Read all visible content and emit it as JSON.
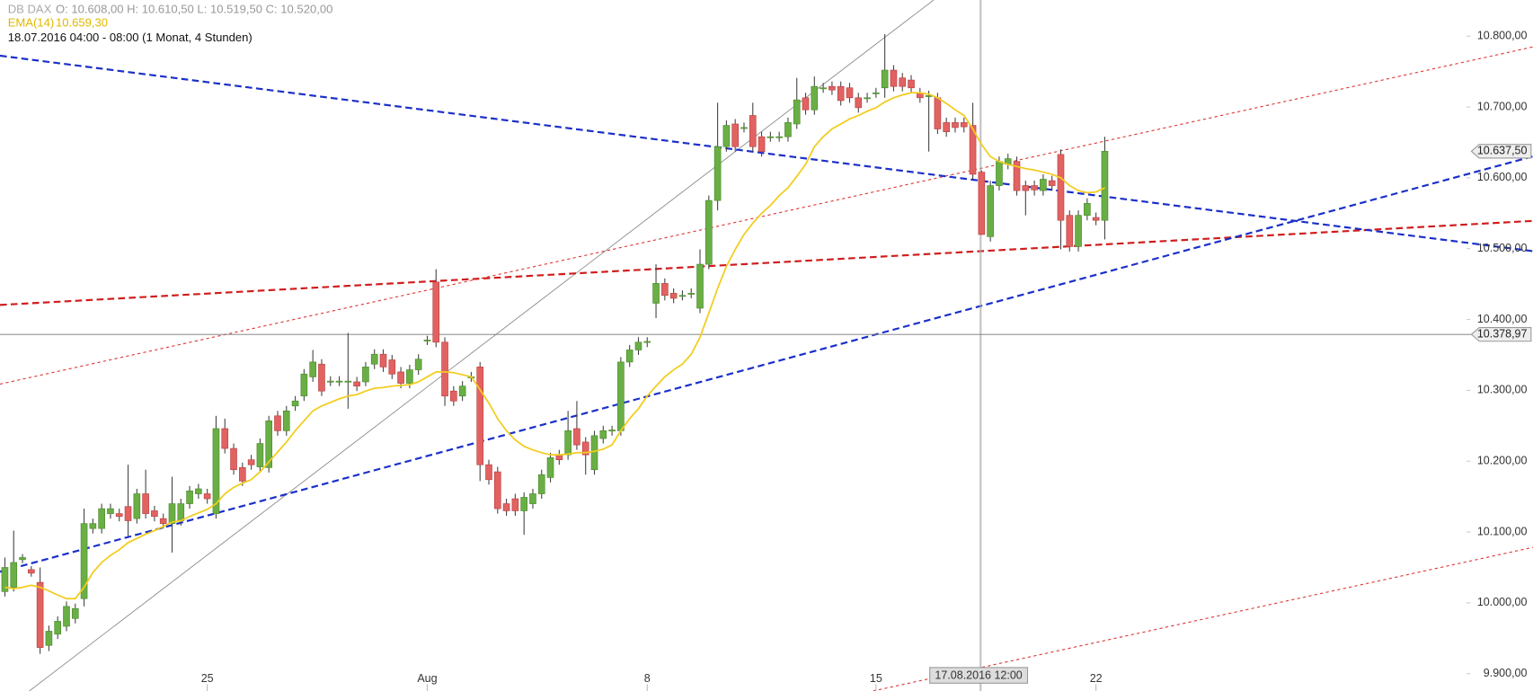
{
  "chart_data": {
    "type": "candlestick",
    "symbol": "DB DAX",
    "ohlc_text": "O: 10.608,00  H: 10.610,50  L: 10.519,50  C: 10.520,00",
    "indicator_name": "EMA(14)",
    "indicator_value": "10.659,30",
    "period_text": "18.07.2016 04:00 - 08:00 (1 Monat, 4 Stunden)",
    "crosshair_label": "17.08.2016 12:00",
    "up_color": "#6aaf45",
    "down_color": "#e26262",
    "ema_color": "#f2cc1c",
    "ylim": [
      9877,
      10851
    ],
    "yticks": [
      {
        "value": 9900,
        "label": "9.900,00"
      },
      {
        "value": 10000,
        "label": "10.000,00"
      },
      {
        "value": 10100,
        "label": "10.100,00"
      },
      {
        "value": 10200,
        "label": "10.200,00"
      },
      {
        "value": 10300,
        "label": "10.300,00"
      },
      {
        "value": 10400,
        "label": "10.400,00"
      },
      {
        "value": 10500,
        "label": "10.500,00"
      },
      {
        "value": 10600,
        "label": "10.600,00"
      },
      {
        "value": 10700,
        "label": "10.700,00"
      },
      {
        "value": 10800,
        "label": "10.800,00"
      }
    ],
    "last_price": {
      "value": 10637.5,
      "label": "10.637,50"
    },
    "hline": {
      "value": 10378.97,
      "label": "10.378,97"
    },
    "categories": [
      null,
      null,
      null,
      null,
      null,
      null,
      null,
      null,
      null,
      null,
      null,
      null,
      null,
      null,
      null,
      null,
      null,
      null,
      null,
      null,
      null,
      null,
      null,
      "25",
      null,
      null,
      null,
      null,
      null,
      null,
      null,
      null,
      null,
      null,
      null,
      null,
      null,
      null,
      null,
      null,
      null,
      null,
      null,
      null,
      null,
      null,
      null,
      null,
      "Aug",
      null,
      null,
      null,
      null,
      null,
      null,
      null,
      null,
      null,
      null,
      null,
      null,
      null,
      null,
      null,
      null,
      null,
      null,
      null,
      null,
      null,
      null,
      null,
      null,
      "8",
      null,
      null,
      null,
      null,
      null,
      null,
      null,
      null,
      null,
      null,
      null,
      null,
      null,
      null,
      null,
      null,
      null,
      null,
      null,
      null,
      null,
      null,
      null,
      null,
      null,
      "15",
      null,
      null,
      null,
      null,
      null,
      null,
      null,
      null,
      null,
      null,
      null,
      null,
      null,
      null,
      null,
      null,
      null,
      null,
      null,
      null,
      null,
      null,
      null,
      null,
      "22",
      null
    ],
    "candles": [
      [
        10016,
        10064,
        10009,
        10050
      ],
      [
        10022,
        10102,
        10016,
        10057
      ],
      [
        10061,
        10069,
        10056,
        10064
      ],
      [
        10047,
        10052,
        10037,
        10042
      ],
      [
        10029,
        10050,
        9928,
        9937
      ],
      [
        9940,
        9968,
        9932,
        9960
      ],
      [
        9956,
        9981,
        9949,
        9974
      ],
      [
        9967,
        10002,
        9960,
        9995
      ],
      [
        9978,
        9999,
        9971,
        9992
      ],
      [
        10006,
        10133,
        9995,
        10112
      ],
      [
        10105,
        10119,
        10098,
        10112
      ],
      [
        10105,
        10140,
        10098,
        10133
      ],
      [
        10126,
        10140,
        10119,
        10133
      ],
      [
        10126,
        10133,
        10115,
        10122
      ],
      [
        10136,
        10195,
        10094,
        10116
      ],
      [
        10119,
        10161,
        10112,
        10154
      ],
      [
        10154,
        10188,
        10119,
        10126
      ],
      [
        10130,
        10137,
        10115,
        10122
      ],
      [
        10119,
        10126,
        10105,
        10112
      ],
      [
        10112,
        10178,
        10071,
        10140
      ],
      [
        10116,
        10147,
        10109,
        10140
      ],
      [
        10140,
        10165,
        10133,
        10158
      ],
      [
        10154,
        10168,
        10147,
        10161
      ],
      [
        10154,
        10161,
        10140,
        10147
      ],
      [
        10126,
        10264,
        10119,
        10246
      ],
      [
        10246,
        10260,
        10211,
        10218
      ],
      [
        10218,
        10225,
        10181,
        10188
      ],
      [
        10191,
        10198,
        10165,
        10172
      ],
      [
        10202,
        10209,
        10188,
        10195
      ],
      [
        10192,
        10232,
        10185,
        10225
      ],
      [
        10191,
        10264,
        10184,
        10257
      ],
      [
        10264,
        10271,
        10236,
        10243
      ],
      [
        10243,
        10278,
        10236,
        10271
      ],
      [
        10278,
        10292,
        10271,
        10285
      ],
      [
        10292,
        10330,
        10285,
        10323
      ],
      [
        10319,
        10357,
        10312,
        10340
      ],
      [
        10337,
        10344,
        10292,
        10299
      ],
      [
        10312,
        10320,
        10306,
        10313
      ],
      [
        10313,
        10320,
        10306,
        10313
      ],
      [
        10313,
        10381,
        10274,
        10313
      ],
      [
        10312,
        10319,
        10299,
        10306
      ],
      [
        10312,
        10340,
        10306,
        10333
      ],
      [
        10337,
        10358,
        10330,
        10351
      ],
      [
        10351,
        10358,
        10326,
        10333
      ],
      [
        10343,
        10350,
        10316,
        10323
      ],
      [
        10326,
        10333,
        10303,
        10310
      ],
      [
        10310,
        10336,
        10303,
        10329
      ],
      [
        10329,
        10351,
        10322,
        10344
      ],
      [
        10370,
        10377,
        10364,
        10371
      ],
      [
        10453,
        10471,
        10361,
        10368
      ],
      [
        10368,
        10375,
        10278,
        10292
      ],
      [
        10299,
        10306,
        10278,
        10285
      ],
      [
        10292,
        10313,
        10285,
        10306
      ],
      [
        10319,
        10326,
        10312,
        10319
      ],
      [
        10333,
        10340,
        10172,
        10195
      ],
      [
        10195,
        10202,
        10167,
        10174
      ],
      [
        10185,
        10192,
        10126,
        10133
      ],
      [
        10140,
        10147,
        10123,
        10130
      ],
      [
        10147,
        10154,
        10123,
        10130
      ],
      [
        10130,
        10156,
        10096,
        10149
      ],
      [
        10140,
        10161,
        10133,
        10154
      ],
      [
        10154,
        10188,
        10147,
        10181
      ],
      [
        10177,
        10212,
        10170,
        10205
      ],
      [
        10209,
        10216,
        10195,
        10202
      ],
      [
        10209,
        10271,
        10202,
        10243
      ],
      [
        10246,
        10285,
        10216,
        10223
      ],
      [
        10227,
        10234,
        10181,
        10209
      ],
      [
        10188,
        10243,
        10181,
        10236
      ],
      [
        10232,
        10250,
        10225,
        10243
      ],
      [
        10243,
        10250,
        10236,
        10244
      ],
      [
        10243,
        10347,
        10236,
        10340
      ],
      [
        10340,
        10364,
        10333,
        10357
      ],
      [
        10357,
        10375,
        10350,
        10368
      ],
      [
        10368,
        10375,
        10361,
        10369
      ],
      [
        10423,
        10478,
        10402,
        10451
      ],
      [
        10451,
        10458,
        10427,
        10434
      ],
      [
        10437,
        10444,
        10423,
        10430
      ],
      [
        10434,
        10441,
        10427,
        10434
      ],
      [
        10437,
        10444,
        10430,
        10437
      ],
      [
        10416,
        10499,
        10409,
        10478
      ],
      [
        10478,
        10575,
        10471,
        10568
      ],
      [
        10568,
        10706,
        10554,
        10644
      ],
      [
        10644,
        10681,
        10637,
        10674
      ],
      [
        10676,
        10683,
        10637,
        10644
      ],
      [
        10671,
        10678,
        10664,
        10671
      ],
      [
        10688,
        10706,
        10637,
        10644
      ],
      [
        10658,
        10665,
        10630,
        10637
      ],
      [
        10658,
        10665,
        10651,
        10658
      ],
      [
        10657,
        10665,
        10651,
        10658
      ],
      [
        10658,
        10685,
        10651,
        10678
      ],
      [
        10676,
        10741,
        10669,
        10710
      ],
      [
        10713,
        10720,
        10689,
        10696
      ],
      [
        10696,
        10743,
        10689,
        10729
      ],
      [
        10727,
        10734,
        10720,
        10727
      ],
      [
        10729,
        10736,
        10717,
        10724
      ],
      [
        10729,
        10736,
        10702,
        10709
      ],
      [
        10727,
        10734,
        10706,
        10713
      ],
      [
        10713,
        10720,
        10692,
        10699
      ],
      [
        10713,
        10720,
        10706,
        10713
      ],
      [
        10720,
        10727,
        10713,
        10720
      ],
      [
        10727,
        10803,
        10713,
        10752
      ],
      [
        10752,
        10759,
        10722,
        10729
      ],
      [
        10741,
        10748,
        10722,
        10729
      ],
      [
        10738,
        10745,
        10720,
        10727
      ],
      [
        10720,
        10727,
        10706,
        10713
      ],
      [
        10716,
        10723,
        10637,
        10716
      ],
      [
        10713,
        10720,
        10662,
        10669
      ],
      [
        10678,
        10685,
        10658,
        10665
      ],
      [
        10678,
        10685,
        10664,
        10671
      ],
      [
        10678,
        10685,
        10664,
        10672
      ],
      [
        10674,
        10706,
        10598,
        10605
      ],
      [
        10608,
        10610.5,
        10519.5,
        10520
      ],
      [
        10517,
        10596,
        10510,
        10589
      ],
      [
        10589,
        10630,
        10582,
        10623
      ],
      [
        10619,
        10634,
        10612,
        10627
      ],
      [
        10623,
        10630,
        10575,
        10582
      ],
      [
        10589,
        10596,
        10547,
        10582
      ],
      [
        10589,
        10596,
        10575,
        10583
      ],
      [
        10582,
        10605,
        10575,
        10598
      ],
      [
        10596,
        10603,
        10582,
        10589
      ],
      [
        10633,
        10640,
        10499,
        10540
      ],
      [
        10547,
        10554,
        10496,
        10503
      ],
      [
        10503,
        10554,
        10496,
        10547
      ],
      [
        10547,
        10571,
        10540,
        10564
      ],
      [
        10544,
        10551,
        10533,
        10540
      ],
      [
        10540,
        10658,
        10513,
        10637.5
      ]
    ],
    "ema": [
      10022,
      10020,
      10022,
      10025,
      10022,
      10017,
      10011,
      10006,
      10006,
      10022,
      10043,
      10057,
      10067,
      10075,
      10085,
      10091,
      10097,
      10102,
      10108,
      10114,
      10116,
      10122,
      10127,
      10132,
      10140,
      10154,
      10163,
      10169,
      10174,
      10185,
      10199,
      10213,
      10227,
      10243,
      10257,
      10271,
      10278,
      10283,
      10288,
      10292,
      10294,
      10299,
      10303,
      10304,
      10306,
      10307,
      10308,
      10312,
      10319,
      10326,
      10326,
      10325,
      10322,
      10319,
      10301,
      10282,
      10260,
      10243,
      10230,
      10221,
      10216,
      10212,
      10209,
      10209,
      10210,
      10212,
      10212,
      10214,
      10217,
      10223,
      10243,
      10260,
      10274,
      10292,
      10306,
      10319,
      10329,
      10337,
      10351,
      10375,
      10409,
      10444,
      10475,
      10499,
      10520,
      10536,
      10550,
      10561,
      10575,
      10586,
      10602,
      10619,
      10644,
      10658,
      10669,
      10676,
      10683,
      10688,
      10694,
      10699,
      10707,
      10713,
      10717,
      10720,
      10720,
      10718,
      10713,
      10705,
      10696,
      10688,
      10669,
      10647,
      10630,
      10623,
      10619,
      10616,
      10613,
      10611,
      10608,
      10605,
      10600,
      10589,
      10582,
      10579,
      10580,
      10586
    ]
  }
}
